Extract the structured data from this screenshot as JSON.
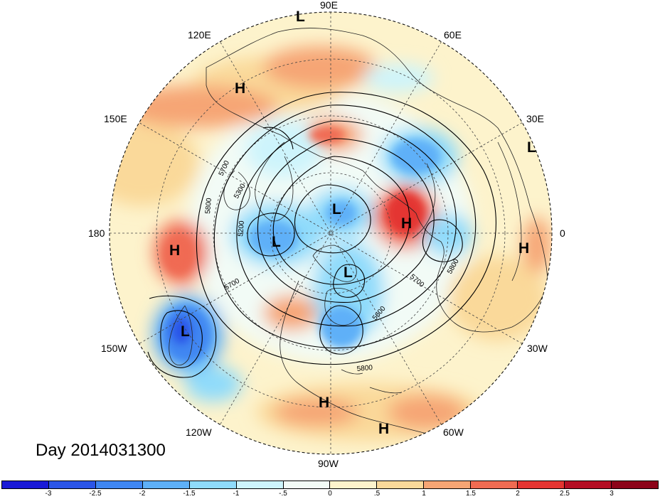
{
  "title": "Day 2014031300",
  "longitude_labels": [
    "90E",
    "60E",
    "30E",
    "0",
    "30W",
    "60W",
    "90W",
    "120W",
    "150W",
    "180",
    "150E",
    "120E"
  ],
  "contour_labels": [
    "5700",
    "5800",
    "5300",
    "5200",
    "5700",
    "5600",
    "5700",
    "5800",
    "5800"
  ],
  "pressure_centers": [
    "L",
    "H",
    "L",
    "L",
    "H",
    "L",
    "L",
    "H",
    "H",
    "L",
    "H",
    "H"
  ],
  "colorbar": {
    "colors": [
      "#1a1ad6",
      "#2b55e8",
      "#3f86f2",
      "#5eb0f8",
      "#8fdbfb",
      "#cdf4fc",
      "#f2fbf6",
      "#fdf3cc",
      "#fad99a",
      "#f6a574",
      "#f06b52",
      "#e43431",
      "#b40e24",
      "#8c0419"
    ],
    "labels": [
      "-3",
      "-2.5",
      "-2",
      "-1.5",
      "-1",
      "-.5",
      "0",
      ".5",
      "1",
      "1.5",
      "2",
      "2.5",
      "3"
    ]
  }
}
